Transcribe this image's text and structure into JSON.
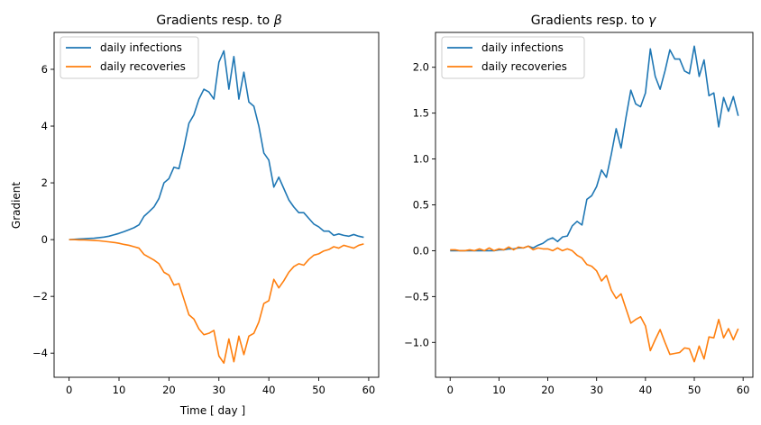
{
  "chart_data": [
    {
      "type": "line",
      "title": "Gradients resp. to ",
      "title_symbol": "β",
      "xlabel": "Time [ day ]",
      "ylabel": "Gradient",
      "xlim": [
        -3,
        62
      ],
      "ylim": [
        -4.85,
        7.3
      ],
      "xticks": [
        0,
        10,
        20,
        30,
        40,
        50,
        60
      ],
      "yticks": [
        -4,
        -2,
        0,
        2,
        4,
        6
      ],
      "ytick_labels": [
        "−4",
        "−2",
        "0",
        "2",
        "4",
        "6"
      ],
      "legend_position": "upper-left",
      "grid": false,
      "x": [
        0,
        1,
        2,
        3,
        4,
        5,
        6,
        7,
        8,
        9,
        10,
        11,
        12,
        13,
        14,
        15,
        16,
        17,
        18,
        19,
        20,
        21,
        22,
        23,
        24,
        25,
        26,
        27,
        28,
        29,
        30,
        31,
        32,
        33,
        34,
        35,
        36,
        37,
        38,
        39,
        40,
        41,
        42,
        43,
        44,
        45,
        46,
        47,
        48,
        49,
        50,
        51,
        52,
        53,
        54,
        55,
        56,
        57,
        58,
        59
      ],
      "series": [
        {
          "name": "daily infections",
          "color": "#1f77b4",
          "values": [
            0.0,
            0.01,
            0.02,
            0.03,
            0.04,
            0.05,
            0.07,
            0.09,
            0.12,
            0.17,
            0.22,
            0.28,
            0.35,
            0.42,
            0.52,
            0.82,
            0.98,
            1.15,
            1.45,
            2.0,
            2.15,
            2.55,
            2.5,
            3.25,
            4.1,
            4.4,
            4.95,
            5.3,
            5.2,
            4.95,
            6.25,
            6.65,
            5.3,
            6.45,
            4.95,
            5.9,
            4.85,
            4.7,
            4.0,
            3.05,
            2.8,
            1.85,
            2.2,
            1.8,
            1.4,
            1.15,
            0.95,
            0.95,
            0.75,
            0.55,
            0.45,
            0.3,
            0.3,
            0.15,
            0.2,
            0.15,
            0.12,
            0.18,
            0.12,
            0.08
          ]
        },
        {
          "name": "daily recoveries",
          "color": "#ff7f0e",
          "values": [
            0.0,
            0.0,
            -0.01,
            -0.01,
            -0.02,
            -0.03,
            -0.04,
            -0.06,
            -0.08,
            -0.1,
            -0.13,
            -0.17,
            -0.2,
            -0.25,
            -0.3,
            -0.52,
            -0.62,
            -0.72,
            -0.85,
            -1.15,
            -1.25,
            -1.6,
            -1.55,
            -2.1,
            -2.65,
            -2.8,
            -3.15,
            -3.35,
            -3.3,
            -3.2,
            -4.1,
            -4.35,
            -3.5,
            -4.3,
            -3.4,
            -4.05,
            -3.4,
            -3.3,
            -2.9,
            -2.25,
            -2.15,
            -1.4,
            -1.7,
            -1.45,
            -1.15,
            -0.95,
            -0.85,
            -0.9,
            -0.7,
            -0.55,
            -0.5,
            -0.4,
            -0.35,
            -0.25,
            -0.3,
            -0.2,
            -0.25,
            -0.3,
            -0.2,
            -0.15
          ]
        }
      ]
    },
    {
      "type": "line",
      "title": "Gradients resp. to ",
      "title_symbol": "γ",
      "xlabel": "",
      "ylabel": "",
      "xlim": [
        -3,
        62
      ],
      "ylim": [
        -1.38,
        2.38
      ],
      "xticks": [
        0,
        10,
        20,
        30,
        40,
        50,
        60
      ],
      "yticks": [
        -1.0,
        -0.5,
        0.0,
        0.5,
        1.0,
        1.5,
        2.0
      ],
      "ytick_labels": [
        "−1.0",
        "−0.5",
        "0.0",
        "0.5",
        "1.0",
        "1.5",
        "2.0"
      ],
      "legend_position": "upper-left",
      "grid": false,
      "x": [
        0,
        1,
        2,
        3,
        4,
        5,
        6,
        7,
        8,
        9,
        10,
        11,
        12,
        13,
        14,
        15,
        16,
        17,
        18,
        19,
        20,
        21,
        22,
        23,
        24,
        25,
        26,
        27,
        28,
        29,
        30,
        31,
        32,
        33,
        34,
        35,
        36,
        37,
        38,
        39,
        40,
        41,
        42,
        43,
        44,
        45,
        46,
        47,
        48,
        49,
        50,
        51,
        52,
        53,
        54,
        55,
        56,
        57,
        58,
        59
      ],
      "series": [
        {
          "name": "daily infections",
          "color": "#1f77b4",
          "values": [
            0.0,
            0.0,
            0.0,
            0.0,
            0.0,
            0.0,
            0.0,
            0.0,
            0.0,
            0.0,
            0.01,
            0.01,
            0.02,
            0.02,
            0.03,
            0.03,
            0.05,
            0.03,
            0.06,
            0.08,
            0.12,
            0.14,
            0.1,
            0.15,
            0.16,
            0.27,
            0.32,
            0.28,
            0.56,
            0.6,
            0.7,
            0.88,
            0.8,
            1.05,
            1.33,
            1.12,
            1.45,
            1.75,
            1.6,
            1.57,
            1.72,
            2.2,
            1.9,
            1.76,
            1.96,
            2.19,
            2.09,
            2.09,
            1.96,
            1.93,
            2.23,
            1.9,
            2.08,
            1.69,
            1.72,
            1.35,
            1.67,
            1.52,
            1.68,
            1.47
          ]
        },
        {
          "name": "daily recoveries",
          "color": "#ff7f0e",
          "values": [
            0.01,
            0.01,
            0.0,
            0.0,
            0.01,
            0.0,
            0.02,
            0.0,
            0.03,
            0.0,
            0.02,
            0.01,
            0.04,
            0.01,
            0.04,
            0.03,
            0.05,
            0.01,
            0.03,
            0.02,
            0.02,
            0.0,
            0.03,
            0.0,
            0.02,
            0.0,
            -0.05,
            -0.08,
            -0.15,
            -0.17,
            -0.22,
            -0.33,
            -0.27,
            -0.43,
            -0.52,
            -0.47,
            -0.63,
            -0.79,
            -0.75,
            -0.72,
            -0.82,
            -1.09,
            -0.97,
            -0.86,
            -1.0,
            -1.13,
            -1.12,
            -1.11,
            -1.06,
            -1.07,
            -1.21,
            -1.04,
            -1.18,
            -0.94,
            -0.95,
            -0.75,
            -0.95,
            -0.85,
            -0.97,
            -0.85
          ]
        }
      ]
    }
  ]
}
